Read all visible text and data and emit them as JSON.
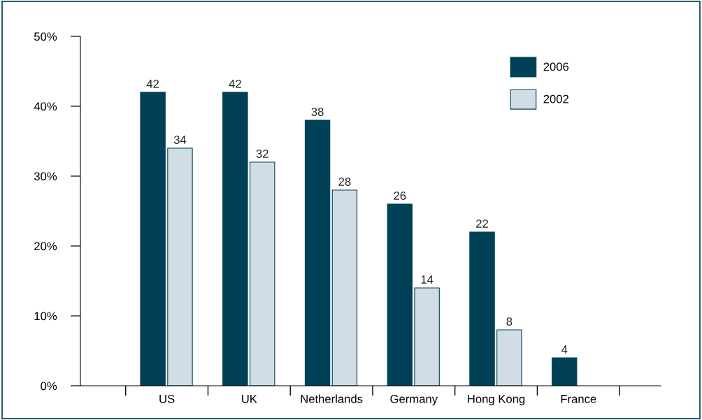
{
  "chart_data": {
    "type": "bar",
    "categories": [
      "US",
      "UK",
      "Netherlands",
      "Germany",
      "Hong Kong",
      "France"
    ],
    "series": [
      {
        "name": "2006",
        "color": "#004157",
        "values": [
          42,
          42,
          38,
          26,
          22,
          4
        ]
      },
      {
        "name": "2002",
        "color": "#d0dde5",
        "values": [
          34,
          32,
          28,
          14,
          8,
          null
        ]
      }
    ],
    "ylim": [
      0,
      50
    ],
    "yticks": [
      {
        "value": 0,
        "label": "0%"
      },
      {
        "value": 10,
        "label": "10%"
      },
      {
        "value": 20,
        "label": "20%"
      },
      {
        "value": 30,
        "label": "30%"
      },
      {
        "value": 40,
        "label": "40%"
      },
      {
        "value": 50,
        "label": "50%"
      }
    ],
    "data_labels": true,
    "grid": false,
    "legend": "top right"
  }
}
